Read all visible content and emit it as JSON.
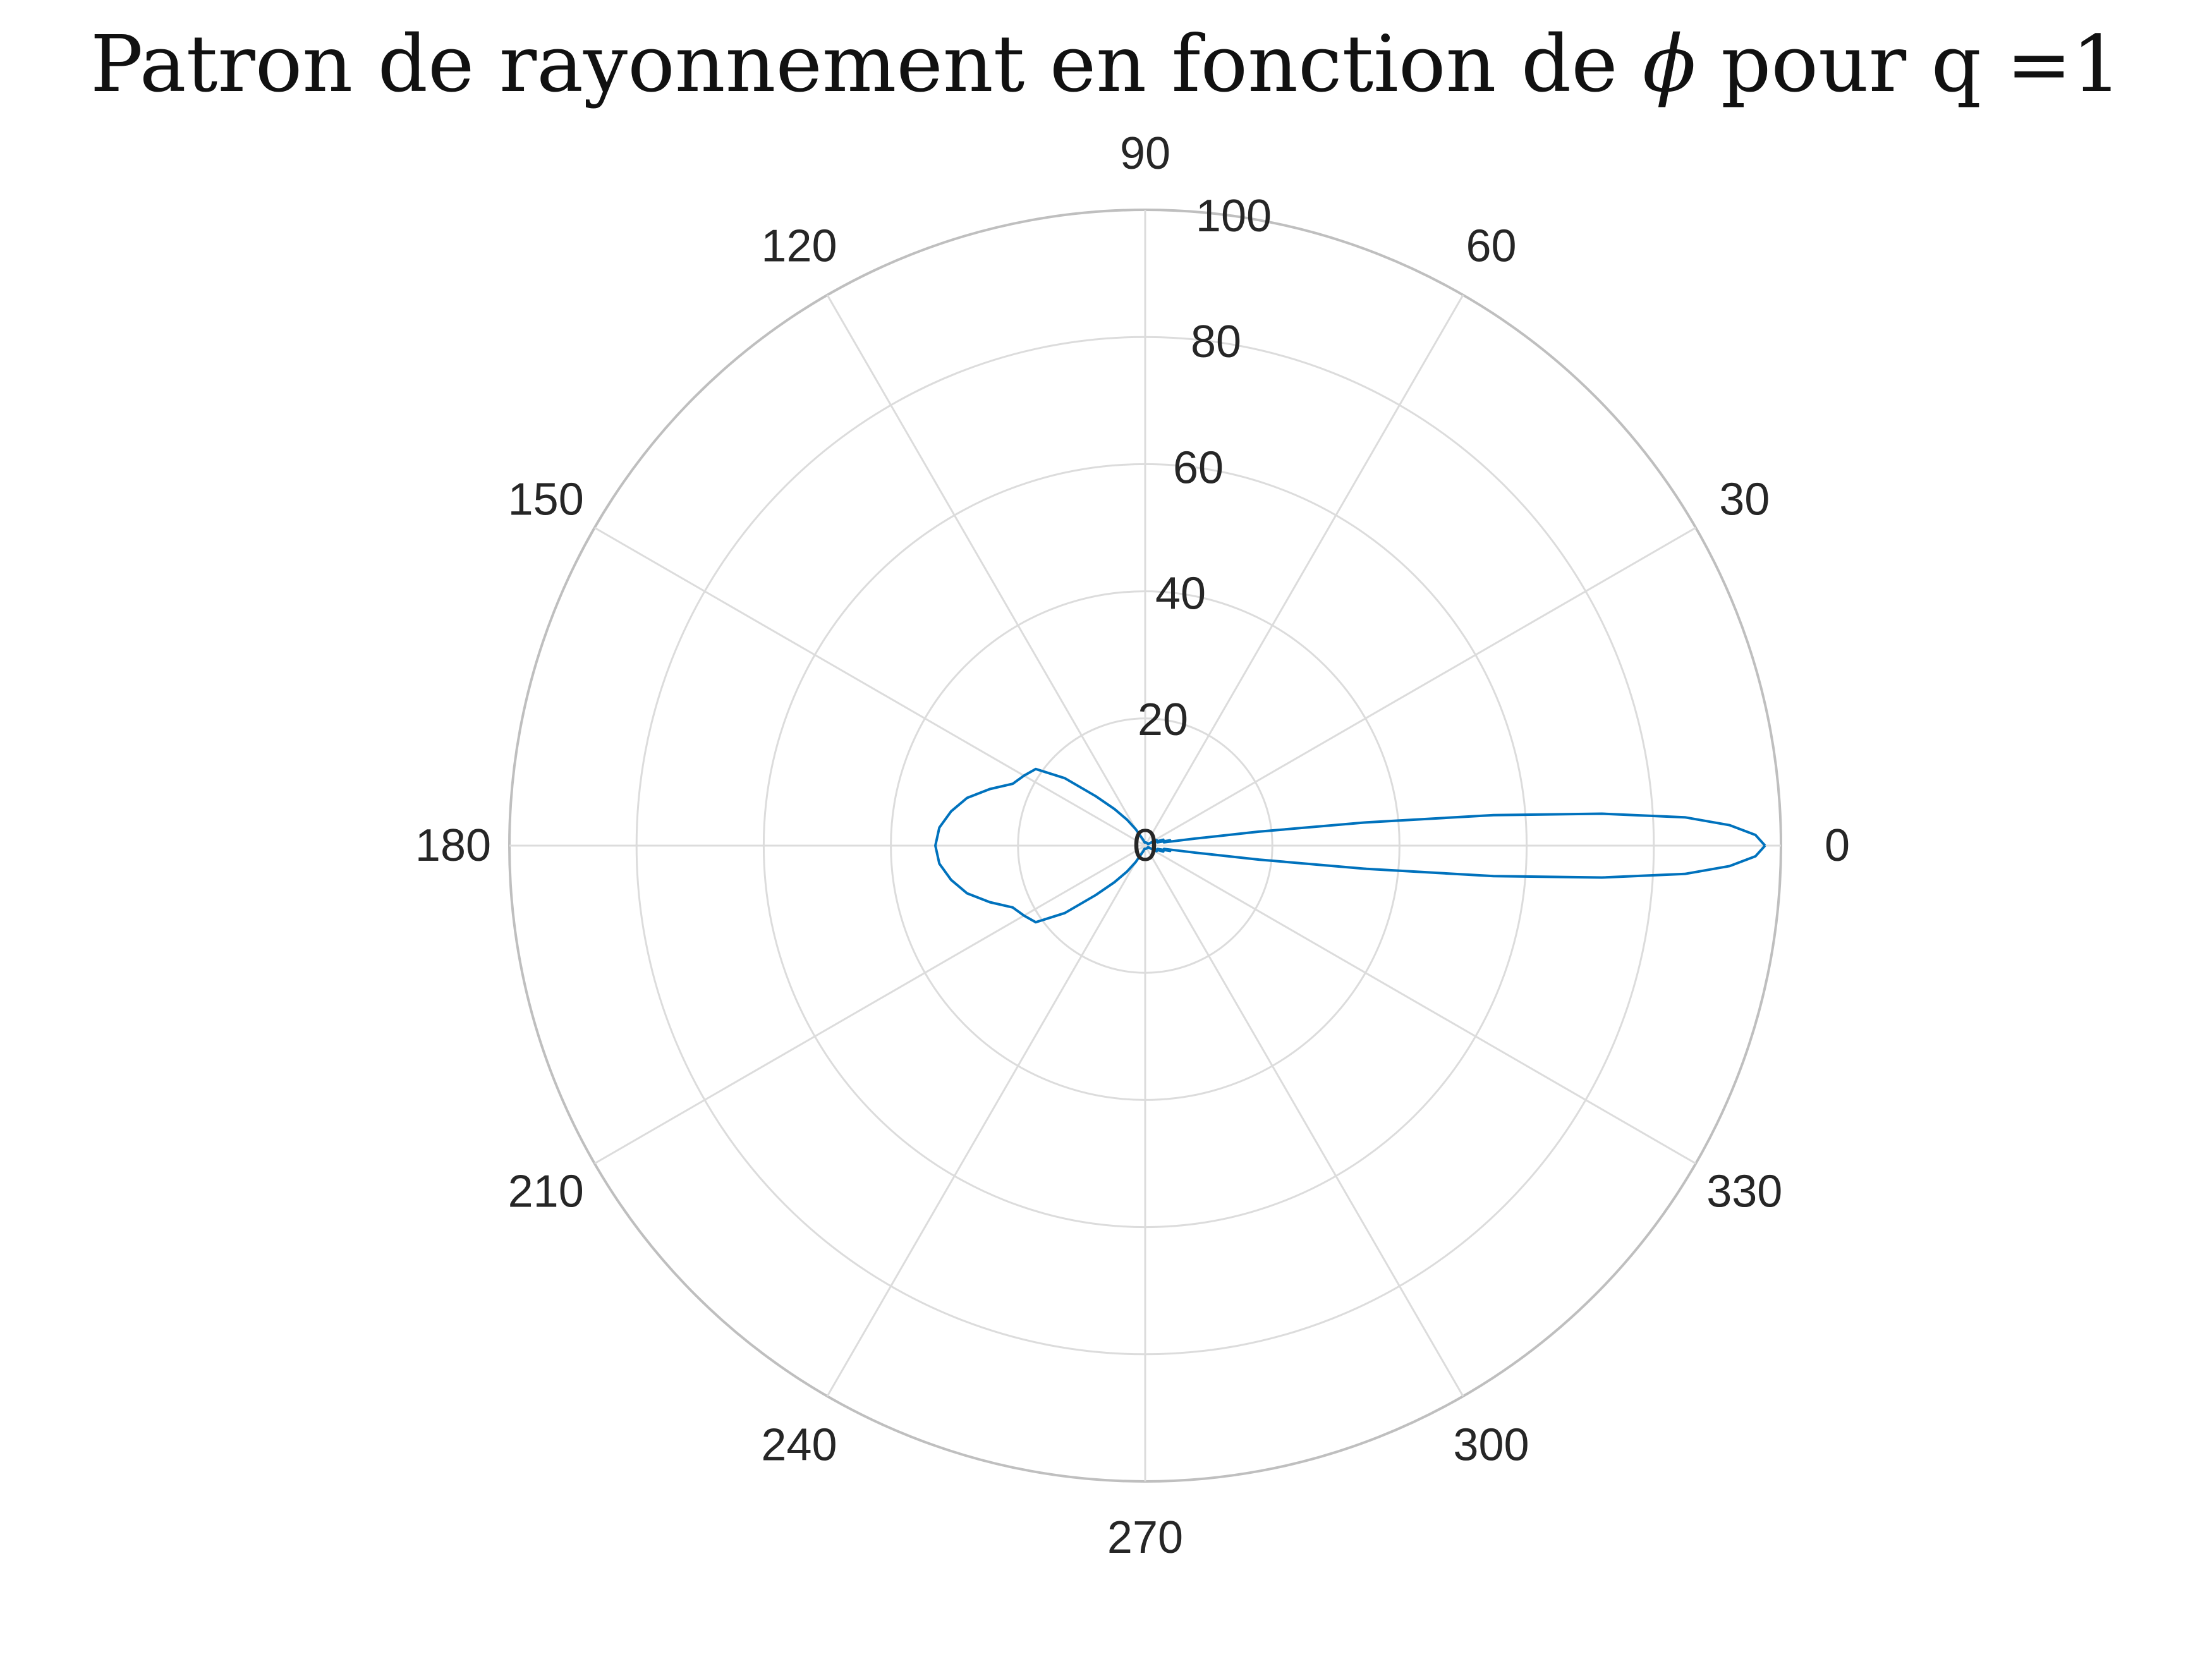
{
  "title": {
    "prefix": "Patron de rayonnement en fonction de ",
    "symbol": "ϕ",
    "suffix": " pour q =1"
  },
  "chart_data": {
    "type": "polar-line",
    "title": "Patron de rayonnement en fonction de ϕ pour q =1",
    "angle_unit": "degrees",
    "angle_ticks": [
      0,
      30,
      60,
      90,
      120,
      150,
      180,
      210,
      240,
      270,
      300,
      330
    ],
    "angle_tick_labels": [
      "0",
      "30",
      "60",
      "90",
      "120",
      "150",
      "180",
      "210",
      "240",
      "270",
      "300",
      "330"
    ],
    "r_ticks": [
      0,
      20,
      40,
      60,
      80,
      100
    ],
    "r_tick_labels": [
      "0",
      "20",
      "40",
      "60",
      "80",
      "100"
    ],
    "rlim": [
      0,
      100
    ],
    "grid": true,
    "line_color": "#0072BD",
    "grid_color": "#dcdcdc",
    "outer_ring_color": "#bfbfbf",
    "series": [
      {
        "theta": [
          0,
          1,
          2,
          3,
          4,
          5,
          6,
          7,
          8,
          10,
          12,
          15,
          18,
          22,
          26,
          30,
          40,
          50,
          60,
          80,
          100,
          110,
          120,
          125,
          130,
          135,
          140,
          145,
          150,
          155,
          160,
          165,
          170,
          175,
          180,
          185,
          190,
          195,
          200,
          205,
          210,
          215,
          220,
          225,
          230,
          235,
          240,
          250,
          260,
          280,
          300,
          310,
          320,
          330,
          334,
          338,
          342,
          345,
          348,
          350,
          352,
          353,
          354,
          355,
          356,
          357,
          358,
          359,
          360
        ],
        "r": [
          97.5,
          96,
          92,
          85,
          72,
          55,
          35,
          18,
          8,
          3,
          4,
          2,
          3,
          1.5,
          2,
          0.5,
          0.5,
          0.5,
          0.5,
          0.5,
          0.5,
          1,
          3,
          5,
          7.5,
          11,
          16.5,
          21,
          22,
          23,
          26,
          29,
          31,
          32.5,
          33,
          32.5,
          31,
          29,
          26,
          23,
          22,
          21,
          16.5,
          11,
          7.5,
          5,
          3,
          1,
          0.5,
          0.5,
          0.5,
          0.5,
          0.5,
          0.5,
          2,
          1.5,
          3,
          2,
          4,
          3,
          8,
          18,
          35,
          55,
          72,
          85,
          92,
          96,
          97.5
        ]
      }
    ]
  }
}
